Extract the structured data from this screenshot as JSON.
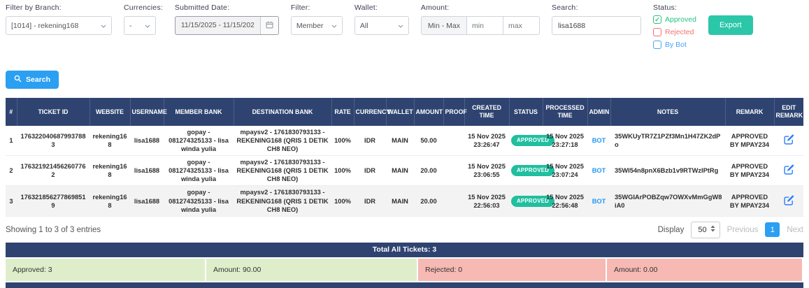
{
  "colors": {
    "header_navy": "#2e4370",
    "badge_green": "#1fbf9f",
    "export_teal": "#2bc7a8",
    "primary_blue": "#2b9ff2",
    "summary_green_bg": "#dfeeca",
    "summary_red_bg": "#f6b9b4"
  },
  "filters": {
    "branch": {
      "label": "Filter by Branch:",
      "value": "[1014] - rekening168"
    },
    "currencies": {
      "label": "Currencies:",
      "value": "-"
    },
    "submitted_date": {
      "label": "Submitted Date:",
      "value": "11/15/2025 - 11/15/2025"
    },
    "filter": {
      "label": "Filter:",
      "value": "Member"
    },
    "wallet": {
      "label": "Wallet:",
      "value": "All"
    },
    "amount": {
      "label": "Amount:",
      "range_label": "Min - Max",
      "min_placeholder": "min",
      "max_placeholder": "max"
    },
    "search": {
      "label": "Search:",
      "value": "lisa1688"
    },
    "status": {
      "label": "Status:",
      "options": [
        {
          "label": "Approved",
          "checked": true,
          "color": "#26c281"
        },
        {
          "label": "Rejected",
          "checked": false,
          "color": "#f0726e"
        },
        {
          "label": "By Bot",
          "checked": false,
          "color": "#4aa3f5"
        }
      ]
    },
    "export_label": "Export"
  },
  "search_button": {
    "label": "Search"
  },
  "table": {
    "headers": [
      "#",
      "TICKET ID",
      "WEBSITE",
      "USERNAME",
      "MEMBER BANK",
      "DESTINATION BANK",
      "RATE",
      "CURRENCY",
      "WALLET",
      "AMOUNT",
      "PROOF",
      "CREATED TIME",
      "STATUS",
      "PROCESSED TIME",
      "ADMIN",
      "NOTES",
      "REMARK",
      "EDIT REMARK"
    ],
    "rows": [
      {
        "index": "1",
        "ticket_id": "1763220406879937883",
        "website": "rekening168",
        "username": "lisa1688",
        "member_bank": "gopay - 081274325133 - lisa winda yulia",
        "destination_bank": "mpaysv2 - 1761830793133 - REKENING168 (QRIS 1 DETIK CH8 NEO)",
        "rate": "100%",
        "currency": "IDR",
        "wallet": "MAIN",
        "amount": "50.00",
        "proof": "",
        "created_date": "15 Nov 2025",
        "created_clock": "23:26:47",
        "status": "APPROVED",
        "processed_date": "15 Nov 2025",
        "processed_clock": "23:27:18",
        "admin": "BOT",
        "notes": "35WKUyTR7Z1PZf3Mn1H47ZK2dPo",
        "remark": "APPROVED BY MPAY234"
      },
      {
        "index": "2",
        "ticket_id": "1763219214562607762",
        "website": "rekening168",
        "username": "lisa1688",
        "member_bank": "gopay - 081274325133 - lisa winda yulia",
        "destination_bank": "mpaysv2 - 1761830793133 - REKENING168 (QRIS 1 DETIK CH8 NEO)",
        "rate": "100%",
        "currency": "IDR",
        "wallet": "MAIN",
        "amount": "20.00",
        "proof": "",
        "created_date": "15 Nov 2025",
        "created_clock": "23:06:55",
        "status": "APPROVED",
        "processed_date": "15 Nov 2025",
        "processed_clock": "23:07:24",
        "admin": "BOT",
        "notes": "35WI54n8pnX6Bzb1v9RTWzIPtRg",
        "remark": "APPROVED BY MPAY234"
      },
      {
        "index": "3",
        "ticket_id": "1763218562778698519",
        "website": "rekening168",
        "username": "lisa1688",
        "member_bank": "gopay - 081274325133 - lisa winda yulia",
        "destination_bank": "mpaysv2 - 1761830793133 - REKENING168 (QRIS 1 DETIK CH8 NEO)",
        "rate": "100%",
        "currency": "IDR",
        "wallet": "MAIN",
        "amount": "20.00",
        "proof": "",
        "created_date": "15 Nov 2025",
        "created_clock": "22:56:03",
        "status": "APPROVED",
        "processed_date": "15 Nov 2025",
        "processed_clock": "22:56:48",
        "admin": "BOT",
        "notes": "35WGIArPOBZqw7OWXvMmGgW8iA0",
        "remark": "APPROVED BY MPAY234"
      }
    ]
  },
  "pagination": {
    "showing": "Showing 1 to 3 of 3 entries",
    "display_label": "Display",
    "page_size": "50",
    "previous": "Previous",
    "page": "1",
    "next": "Next"
  },
  "summary": {
    "total": "Total All Tickets: 3",
    "cells": [
      {
        "text": "Approved: 3",
        "tone": "green"
      },
      {
        "text": "Amount: 90.00",
        "tone": "green"
      },
      {
        "text": "Rejected: 0",
        "tone": "red"
      },
      {
        "text": "Amount: 0.00",
        "tone": "red"
      }
    ]
  }
}
